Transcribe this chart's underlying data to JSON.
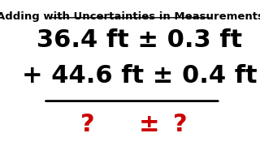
{
  "title": "Adding with Uncertainties in Measurements",
  "line1": "36.4 ft ± 0.3 ft",
  "line2": "+ 44.6 ft ± 0.4 ft",
  "answer_left": "?",
  "answer_pm": "±",
  "answer_right": "?",
  "title_color": "#000000",
  "main_color": "#000000",
  "answer_color": "#cc0000",
  "bg_color": "#ffffff",
  "title_fontsize": 9.5,
  "main_fontsize": 22,
  "answer_fontsize": 22
}
